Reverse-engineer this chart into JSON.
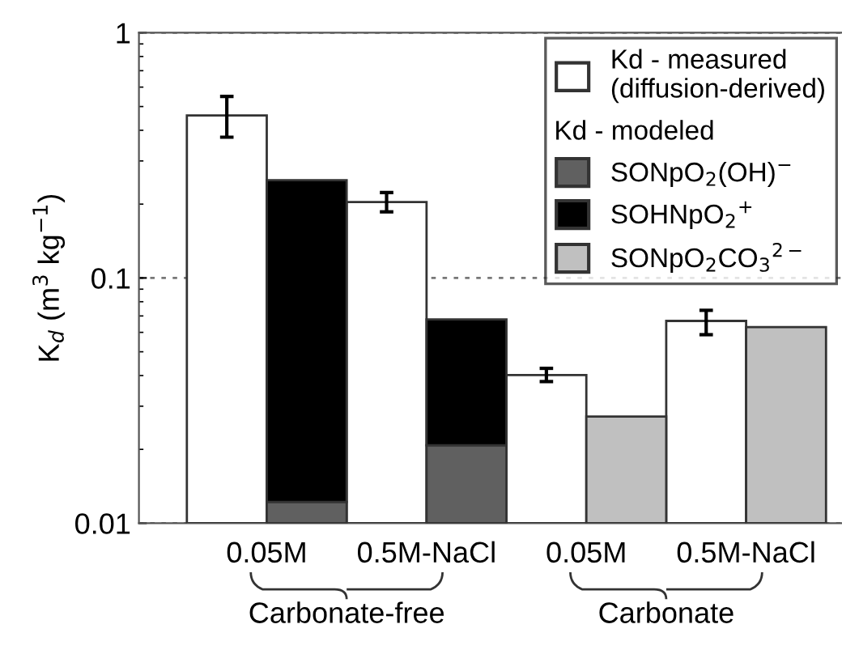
{
  "chart_data": {
    "type": "bar",
    "ylabel": "K$_{d}$ (m$^{3}$ kg$^{−1}$)",
    "categories": [
      "0.05M",
      null,
      "0.5M-NaCl",
      null,
      "0.05M",
      null,
      "0.5M-NaCl",
      null
    ],
    "stacked": true,
    "series": [
      {
        "name": "Kd - measured\n(diffusion-derived)",
        "color": "#ffffff",
        "values": [
          0.46,
          null,
          0.204,
          null,
          0.0402,
          null,
          0.0668,
          null
        ],
        "errors": [
          [
            0.375,
            0.55
          ],
          null,
          [
            0.186,
            0.223
          ],
          null,
          [
            0.0378,
            0.0428
          ],
          null,
          [
            0.0587,
            0.0738
          ],
          null
        ]
      },
      {
        "name": "SONpO$_{2}$(OH)$^{−}$",
        "color": "#606060",
        "values": [
          null,
          0.0122,
          null,
          0.0208,
          null,
          null,
          null,
          null
        ]
      },
      {
        "name": "SOHNpO$_{2}$$^{+}$",
        "color": "#000000",
        "values": [
          null,
          0.238,
          null,
          0.047,
          null,
          null,
          null,
          null
        ]
      },
      {
        "name": "SONpO$_{2}$CO$_{3}$$^{2−}$",
        "color": "#c0c0c0",
        "values": [
          null,
          null,
          null,
          null,
          null,
          0.0272,
          null,
          0.063
        ]
      }
    ],
    "legend_title": "Kd - modeled",
    "annotations": [
      "Carbonate-free",
      "Carbonate"
    ],
    "log": "y",
    "ylim": [
      0.01,
      1
    ],
    "yticks": [
      0.01,
      0.1,
      1
    ],
    "grid": "y",
    "legend": "top right"
  }
}
